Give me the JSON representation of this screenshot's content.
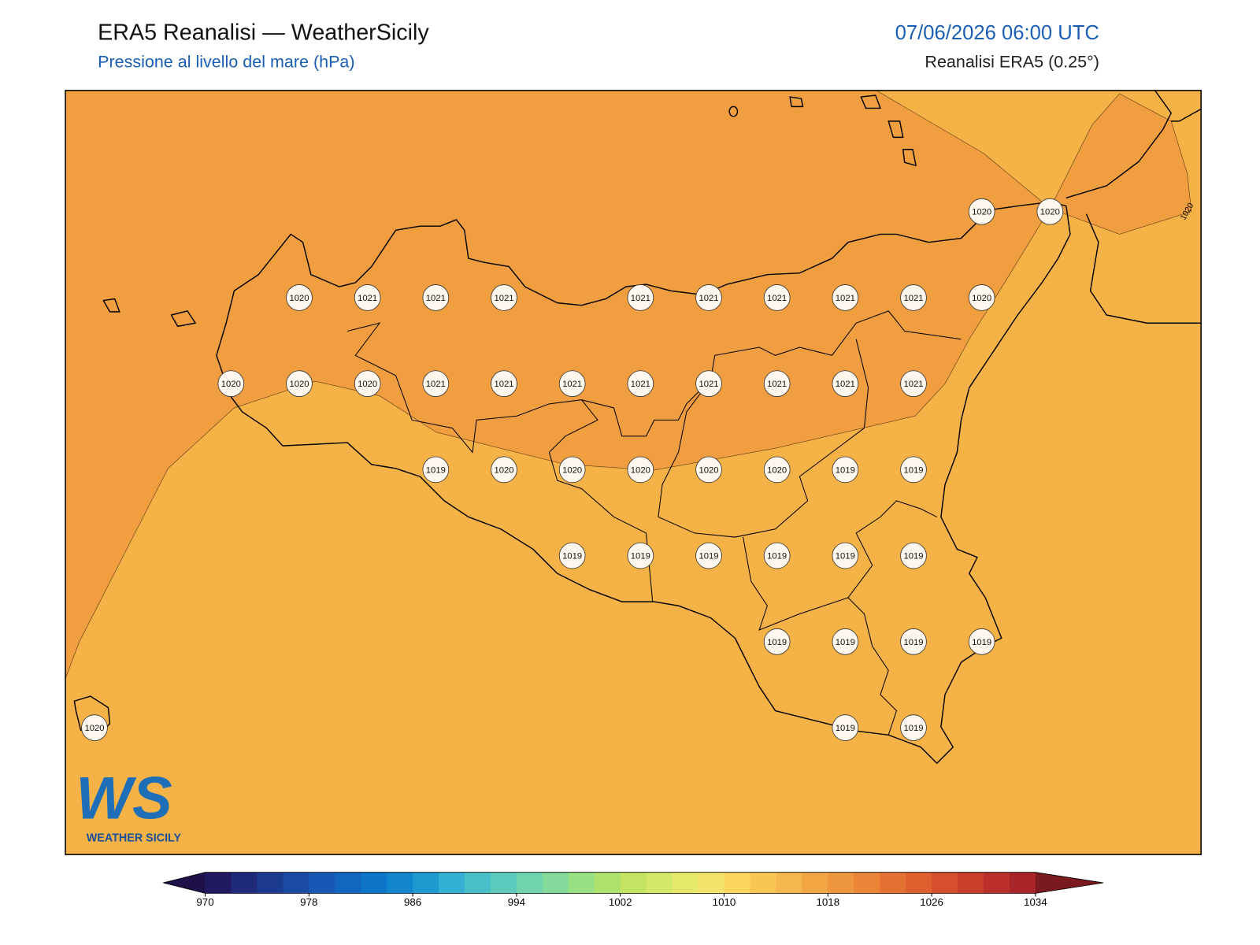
{
  "header": {
    "title": "ERA5 Reanalisi — WeatherSicily",
    "subtitle": "Pressione al livello del mare (hPa)",
    "datetime": "07/06/2026 06:00 UTC",
    "source": "Reanalisi ERA5 (0.25°)"
  },
  "map": {
    "stations": [
      [
        null,
        null,
        null,
        null,
        null,
        null,
        null,
        null,
        null,
        null,
        null,
        null,
        null,
        "1020",
        "1020"
      ],
      [
        null,
        null,
        null,
        "1020",
        "1021",
        "1021",
        "1021",
        null,
        "1021",
        "1021",
        "1021",
        "1021",
        "1021",
        "1020",
        null
      ],
      [
        null,
        null,
        "1020",
        "1020",
        "1020",
        "1021",
        "1021",
        "1021",
        "1021",
        "1021",
        "1021",
        "1021",
        "1021",
        null,
        null
      ],
      [
        null,
        null,
        null,
        null,
        null,
        "1019",
        "1020",
        "1020",
        "1020",
        "1020",
        "1020",
        "1019",
        "1019",
        null,
        null
      ],
      [
        null,
        null,
        null,
        null,
        null,
        null,
        null,
        "1019",
        "1019",
        "1019",
        "1019",
        "1019",
        "1019",
        null,
        null
      ],
      [
        null,
        null,
        null,
        null,
        null,
        null,
        null,
        null,
        null,
        null,
        "1019",
        "1019",
        "1019",
        "1019",
        null
      ],
      [
        "1020",
        null,
        null,
        null,
        null,
        null,
        null,
        null,
        null,
        null,
        null,
        "1019",
        "1019",
        null,
        null
      ]
    ],
    "contour_label": "1020",
    "logo": {
      "mark": "WS",
      "name": "WEATHER SICILY"
    }
  },
  "colorbar": {
    "ticks": [
      970,
      978,
      986,
      994,
      1002,
      1010,
      1018,
      1026,
      1034
    ],
    "colors": [
      "#1e1048",
      "#211a63",
      "#1f2a7a",
      "#1c3a8f",
      "#1a4aa3",
      "#1658b4",
      "#1266c0",
      "#0e76c8",
      "#1186cc",
      "#1f99d0",
      "#33b0d4",
      "#48c0c8",
      "#5ccbbd",
      "#6fd3ae",
      "#84da9a",
      "#99df84",
      "#ade26f",
      "#c2e462",
      "#d4e867",
      "#e6e86a",
      "#f6e46a",
      "#fad660",
      "#f9c656",
      "#f5b64c",
      "#f2a644",
      "#ee963e",
      "#ea8538",
      "#e57232",
      "#df602e",
      "#d54f2c",
      "#c93e2b",
      "#bb2f2a",
      "#a8262a",
      "#7a1a1e"
    ]
  }
}
